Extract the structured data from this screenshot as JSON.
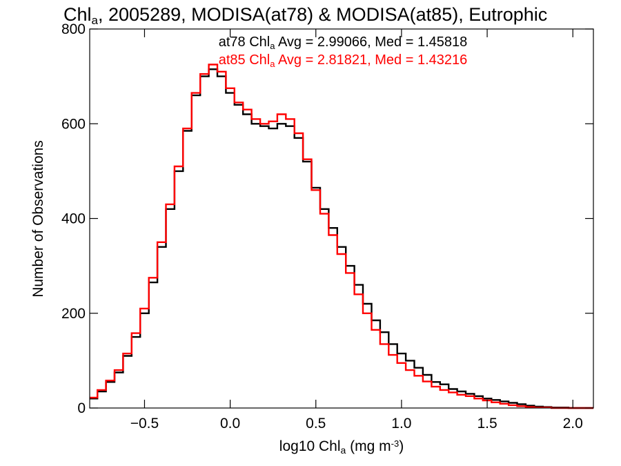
{
  "chart_data": {
    "type": "line",
    "title_parts": [
      "Chl",
      "a",
      ", 2005289, MODISA(at78) & MODISA(at85), Eutrophic"
    ],
    "xlabel_parts": [
      "log10 Chl",
      "a",
      " (mg m",
      "-3",
      ")"
    ],
    "ylabel": "Number of Observations",
    "xlim": [
      -0.82,
      2.12
    ],
    "ylim": [
      0,
      800
    ],
    "xticks": [
      -0.5,
      0.0,
      0.5,
      1.0,
      1.5,
      2.0
    ],
    "xtick_labels": [
      "−0.5",
      "0.0",
      "0.5",
      "1.0",
      "1.5",
      "2.0"
    ],
    "yticks": [
      0,
      200,
      400,
      600,
      800
    ],
    "ytick_labels": [
      "0",
      "200",
      "400",
      "600",
      "800"
    ],
    "annotations": [
      {
        "series": "at78",
        "color": "#000000",
        "parts": [
          "at78 Chl",
          "a",
          " Avg = 2.99066, Med = 1.45818"
        ]
      },
      {
        "series": "at85",
        "color": "#ff0000",
        "parts": [
          "at85 Chl",
          "a",
          " Avg = 2.81821, Med = 1.43216"
        ]
      }
    ],
    "series": [
      {
        "name": "at78",
        "color": "#000000",
        "x": [
          -0.8,
          -0.75,
          -0.7,
          -0.65,
          -0.6,
          -0.55,
          -0.5,
          -0.45,
          -0.4,
          -0.35,
          -0.3,
          -0.25,
          -0.2,
          -0.15,
          -0.1,
          -0.05,
          0.0,
          0.05,
          0.1,
          0.15,
          0.2,
          0.25,
          0.3,
          0.35,
          0.4,
          0.45,
          0.5,
          0.55,
          0.6,
          0.65,
          0.7,
          0.75,
          0.8,
          0.85,
          0.9,
          0.95,
          1.0,
          1.05,
          1.1,
          1.15,
          1.2,
          1.25,
          1.3,
          1.35,
          1.4,
          1.45,
          1.5,
          1.55,
          1.6,
          1.65,
          1.7,
          1.75,
          1.8,
          1.85,
          1.9,
          1.95,
          2.0,
          2.05,
          2.1
        ],
        "y": [
          20,
          35,
          55,
          75,
          110,
          150,
          200,
          265,
          340,
          420,
          500,
          585,
          660,
          700,
          715,
          700,
          665,
          640,
          620,
          600,
          595,
          590,
          600,
          595,
          570,
          520,
          465,
          420,
          380,
          340,
          300,
          260,
          220,
          185,
          160,
          135,
          115,
          100,
          85,
          70,
          55,
          50,
          40,
          35,
          30,
          25,
          20,
          17,
          14,
          11,
          8,
          5,
          3,
          2,
          1,
          1,
          0,
          0,
          0
        ]
      },
      {
        "name": "at85",
        "color": "#ff0000",
        "x": [
          -0.8,
          -0.75,
          -0.7,
          -0.65,
          -0.6,
          -0.55,
          -0.5,
          -0.45,
          -0.4,
          -0.35,
          -0.3,
          -0.25,
          -0.2,
          -0.15,
          -0.1,
          -0.05,
          0.0,
          0.05,
          0.1,
          0.15,
          0.2,
          0.25,
          0.3,
          0.35,
          0.4,
          0.45,
          0.5,
          0.55,
          0.6,
          0.65,
          0.7,
          0.75,
          0.8,
          0.85,
          0.9,
          0.95,
          1.0,
          1.05,
          1.1,
          1.15,
          1.2,
          1.25,
          1.3,
          1.35,
          1.4,
          1.45,
          1.5,
          1.55,
          1.6,
          1.65,
          1.7,
          1.75,
          1.8,
          1.85,
          1.9,
          1.95,
          2.0,
          2.05,
          2.1
        ],
        "y": [
          22,
          38,
          58,
          80,
          115,
          158,
          210,
          275,
          350,
          430,
          510,
          590,
          665,
          705,
          725,
          710,
          675,
          645,
          630,
          610,
          600,
          605,
          620,
          610,
          580,
          525,
          460,
          410,
          365,
          325,
          285,
          240,
          200,
          165,
          135,
          112,
          95,
          80,
          68,
          56,
          45,
          38,
          33,
          28,
          25,
          20,
          16,
          12,
          9,
          6,
          4,
          2,
          1,
          1,
          0,
          0,
          0,
          0,
          0
        ]
      }
    ]
  }
}
